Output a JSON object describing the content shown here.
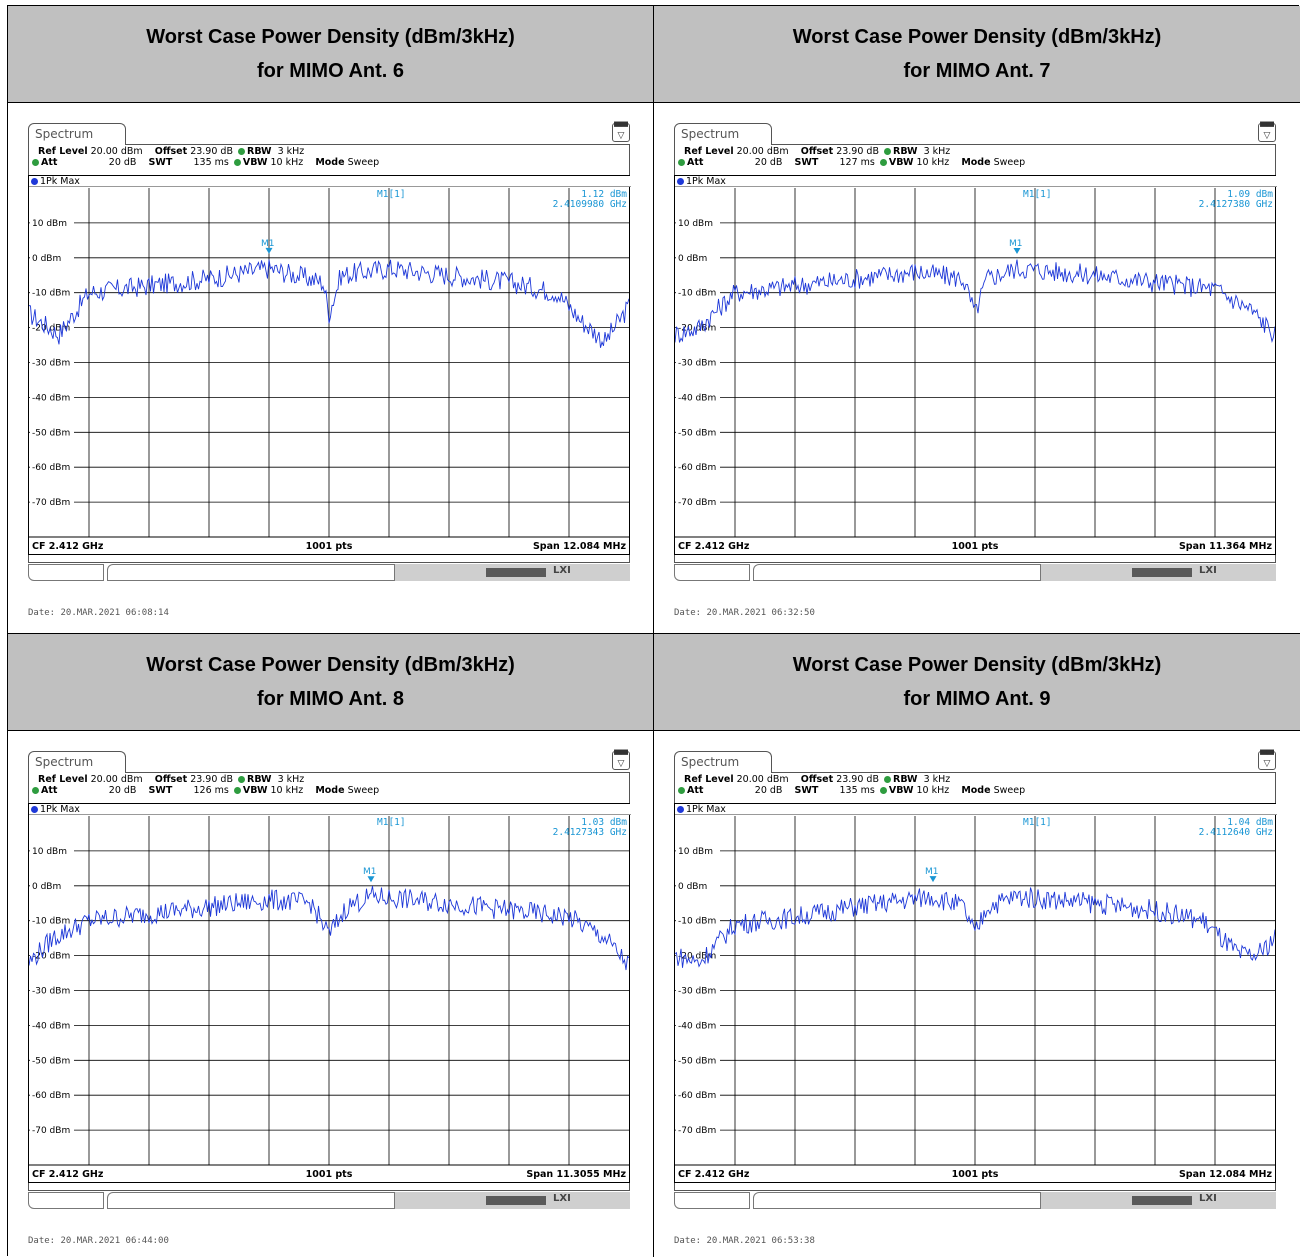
{
  "panels": [
    {
      "heading": "Worst Case Power Density (dBm/3kHz)",
      "subheading": "for MIMO Ant. 6",
      "tab": "Spectrum",
      "ref_level_label": "Ref Level",
      "ref_level": "20.00 dBm",
      "offset_label": "Offset",
      "offset": "23.90 dB",
      "rbw_label": "RBW",
      "rbw": "3 kHz",
      "att_label": "Att",
      "att": "20 dB",
      "swt_label": "SWT",
      "swt": "135 ms",
      "vbw_label": "VBW",
      "vbw": "10 kHz",
      "mode_label": "Mode",
      "mode": "Sweep",
      "trace": "1Pk Max",
      "marker_name": "M1[1]",
      "marker_level": "1.12 dBm",
      "marker_freq": "2.4109980 GHz",
      "marker_tag": "M1",
      "cf": "CF 2.412 GHz",
      "pts": "1001 pts",
      "span": "Span 12.084 MHz",
      "date": "Date: 20.MAR.2021  06:08:14"
    },
    {
      "heading": "Worst Case Power Density (dBm/3kHz)",
      "subheading": "for MIMO Ant. 7",
      "tab": "Spectrum",
      "ref_level_label": "Ref Level",
      "ref_level": "20.00 dBm",
      "offset_label": "Offset",
      "offset": "23.90 dB",
      "rbw_label": "RBW",
      "rbw": "3 kHz",
      "att_label": "Att",
      "att": "20 dB",
      "swt_label": "SWT",
      "swt": "127 ms",
      "vbw_label": "VBW",
      "vbw": "10 kHz",
      "mode_label": "Mode",
      "mode": "Sweep",
      "trace": "1Pk Max",
      "marker_name": "M1[1]",
      "marker_level": "1.09 dBm",
      "marker_freq": "2.4127380 GHz",
      "marker_tag": "M1",
      "cf": "CF 2.412 GHz",
      "pts": "1001 pts",
      "span": "Span 11.364 MHz",
      "date": "Date: 20.MAR.2021  06:32:50"
    },
    {
      "heading": "Worst Case Power Density (dBm/3kHz)",
      "subheading": "for MIMO Ant. 8",
      "tab": "Spectrum",
      "ref_level_label": "Ref Level",
      "ref_level": "20.00 dBm",
      "offset_label": "Offset",
      "offset": "23.90 dB",
      "rbw_label": "RBW",
      "rbw": "3 kHz",
      "att_label": "Att",
      "att": "20 dB",
      "swt_label": "SWT",
      "swt": "126 ms",
      "vbw_label": "VBW",
      "vbw": "10 kHz",
      "mode_label": "Mode",
      "mode": "Sweep",
      "trace": "1Pk Max",
      "marker_name": "M1[1]",
      "marker_level": "1.03 dBm",
      "marker_freq": "2.4127343 GHz",
      "marker_tag": "M1",
      "cf": "CF 2.412 GHz",
      "pts": "1001 pts",
      "span": "Span 11.3055 MHz",
      "date": "Date: 20.MAR.2021  06:44:00"
    },
    {
      "heading": "Worst Case Power Density (dBm/3kHz)",
      "subheading": "for MIMO Ant. 9",
      "tab": "Spectrum",
      "ref_level_label": "Ref Level",
      "ref_level": "20.00 dBm",
      "offset_label": "Offset",
      "offset": "23.90 dB",
      "rbw_label": "RBW",
      "rbw": "3 kHz",
      "att_label": "Att",
      "att": "20 dB",
      "swt_label": "SWT",
      "swt": "135 ms",
      "vbw_label": "VBW",
      "vbw": "10 kHz",
      "mode_label": "Mode",
      "mode": "Sweep",
      "trace": "1Pk Max",
      "marker_name": "M1[1]",
      "marker_level": "1.04 dBm",
      "marker_freq": "2.4112640 GHz",
      "marker_tag": "M1",
      "cf": "CF 2.412 GHz",
      "pts": "1001 pts",
      "span": "Span 12.084 MHz",
      "date": "Date: 20.MAR.2021  06:53:38"
    }
  ],
  "chart_data": [
    {
      "type": "line",
      "ylim": [
        -80,
        20
      ],
      "y_ticks": [
        "10 dBm",
        "0 dBm",
        "-10 dBm",
        "-20 dBm",
        "-30 dBm",
        "-40 dBm",
        "-50 dBm",
        "-60 dBm",
        "-70 dBm"
      ],
      "grid": true,
      "series": [
        {
          "x_fraction": [
            0,
            0.05,
            0.1,
            0.2,
            0.3,
            0.4,
            0.49,
            0.5,
            0.52,
            0.6,
            0.7,
            0.8,
            0.88,
            0.92,
            0.96,
            1.0
          ],
          "values": [
            -16,
            -22,
            -10,
            -8,
            -6,
            -3,
            -7,
            -16,
            -5,
            -3,
            -5,
            -7,
            -10,
            -18,
            -24,
            -14
          ]
        }
      ],
      "marker": {
        "x_fraction": 0.4,
        "value": 1.12
      }
    },
    {
      "type": "line",
      "ylim": [
        -80,
        20
      ],
      "y_ticks": [
        "10 dBm",
        "0 dBm",
        "-10 dBm",
        "-20 dBm",
        "-30 dBm",
        "-40 dBm",
        "-50 dBm",
        "-60 dBm",
        "-70 dBm"
      ],
      "grid": true,
      "series": [
        {
          "x_fraction": [
            0,
            0.04,
            0.1,
            0.2,
            0.3,
            0.4,
            0.48,
            0.5,
            0.52,
            0.57,
            0.7,
            0.8,
            0.9,
            0.96,
            1.0
          ],
          "values": [
            -22,
            -20,
            -10,
            -8,
            -6,
            -4,
            -6,
            -16,
            -6,
            -3,
            -5,
            -7,
            -9,
            -15,
            -22
          ]
        }
      ],
      "marker": {
        "x_fraction": 0.57,
        "value": 1.09
      }
    },
    {
      "type": "line",
      "ylim": [
        -80,
        20
      ],
      "y_ticks": [
        "10 dBm",
        "0 dBm",
        "-10 dBm",
        "-20 dBm",
        "-30 dBm",
        "-40 dBm",
        "-50 dBm",
        "-60 dBm",
        "-70 dBm"
      ],
      "grid": true,
      "series": [
        {
          "x_fraction": [
            0,
            0.04,
            0.1,
            0.2,
            0.3,
            0.4,
            0.47,
            0.5,
            0.53,
            0.57,
            0.7,
            0.8,
            0.9,
            0.96,
            1.0
          ],
          "values": [
            -22,
            -15,
            -10,
            -8,
            -6,
            -4,
            -5,
            -14,
            -6,
            -3,
            -5,
            -7,
            -9,
            -15,
            -23
          ]
        }
      ],
      "marker": {
        "x_fraction": 0.57,
        "value": 1.03
      }
    },
    {
      "type": "line",
      "ylim": [
        -80,
        20
      ],
      "y_ticks": [
        "10 dBm",
        "0 dBm",
        "-10 dBm",
        "-20 dBm",
        "-30 dBm",
        "-40 dBm",
        "-50 dBm",
        "-60 dBm",
        "-70 dBm"
      ],
      "grid": true,
      "series": [
        {
          "x_fraction": [
            0,
            0.04,
            0.1,
            0.2,
            0.3,
            0.43,
            0.48,
            0.5,
            0.52,
            0.57,
            0.7,
            0.8,
            0.88,
            0.94,
            0.97,
            1.0
          ],
          "values": [
            -20,
            -22,
            -11,
            -9,
            -6,
            -3,
            -6,
            -14,
            -6,
            -3,
            -5,
            -7,
            -10,
            -20,
            -20,
            -15
          ]
        }
      ],
      "marker": {
        "x_fraction": 0.43,
        "value": 1.04
      }
    }
  ],
  "colors": {
    "header_bg": "#c0c0c0",
    "trace": "#1e38d8",
    "marker": "#1a96d4",
    "grid": "#000000",
    "status_dot": "#2e9c3f"
  }
}
